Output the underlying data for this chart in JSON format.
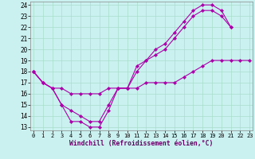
{
  "xlabel": "Windchill (Refroidissement éolien,°C)",
  "bg_color": "#caf0f0",
  "grid_color": "#aaddcc",
  "line_color": "#aa00aa",
  "xlim_min": 0,
  "xlim_max": 23,
  "ylim_min": 13,
  "ylim_max": 24,
  "xticks": [
    0,
    1,
    2,
    3,
    4,
    5,
    6,
    7,
    8,
    9,
    10,
    11,
    12,
    13,
    14,
    15,
    16,
    17,
    18,
    19,
    20,
    21,
    22,
    23
  ],
  "yticks": [
    13,
    14,
    15,
    16,
    17,
    18,
    19,
    20,
    21,
    22,
    23,
    24
  ],
  "curve_a_x": [
    0,
    1,
    2,
    3,
    4,
    5,
    6,
    7,
    8,
    9,
    10,
    11,
    12,
    13,
    14,
    15,
    16,
    17,
    18,
    19,
    20,
    21
  ],
  "curve_a_y": [
    18,
    17,
    16.5,
    15.0,
    13.5,
    13.5,
    13.0,
    13.0,
    14.5,
    16.5,
    16.5,
    18.5,
    19.0,
    20.0,
    20.5,
    21.5,
    22.5,
    23.5,
    24.0,
    24.0,
    23.5,
    22.0
  ],
  "curve_b_x": [
    0,
    1,
    2,
    3,
    4,
    5,
    6,
    7,
    8,
    9,
    10,
    11,
    12,
    13,
    14,
    15,
    16,
    17,
    18,
    19,
    20,
    21
  ],
  "curve_b_y": [
    18,
    17,
    16.5,
    15.0,
    14.5,
    14.0,
    13.5,
    13.5,
    15.0,
    16.5,
    16.5,
    18.0,
    19.0,
    19.5,
    20.0,
    21.0,
    22.0,
    23.0,
    23.5,
    23.5,
    23.0,
    22.0
  ],
  "curve_c_x": [
    0,
    1,
    2,
    3,
    4,
    5,
    6,
    7,
    8,
    9,
    10,
    11,
    12,
    13,
    14,
    15,
    16,
    17,
    18,
    19,
    20,
    21,
    22,
    23
  ],
  "curve_c_y": [
    18,
    17,
    16.5,
    16.5,
    16.0,
    16.0,
    16.0,
    16.0,
    16.5,
    16.5,
    16.5,
    16.5,
    17.0,
    17.0,
    17.0,
    17.0,
    17.5,
    18.0,
    18.5,
    19.0,
    19.0,
    19.0,
    19.0,
    19.0
  ]
}
